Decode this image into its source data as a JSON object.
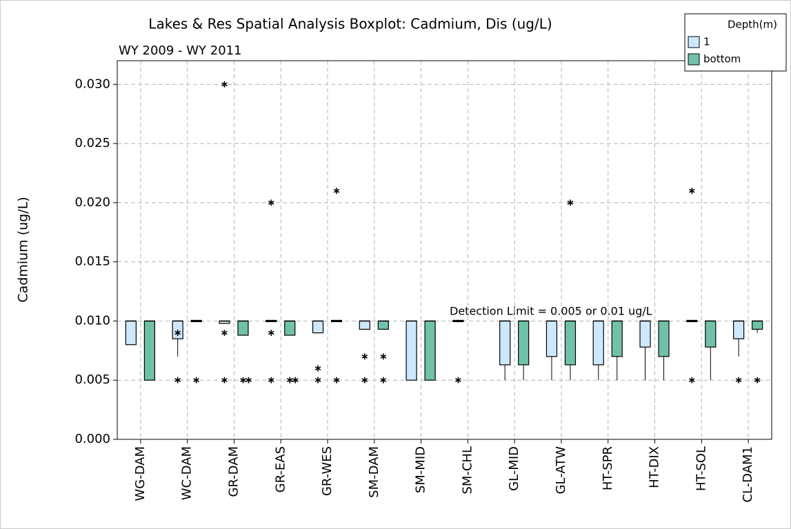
{
  "chart_data": {
    "type": "boxplot",
    "title": "Lakes & Res Spatial Analysis Boxplot: Cadmium, Dis (ug/L)",
    "subtitle": "WY 2009 - WY 2011",
    "y_label": "Cadmium (ug/L)",
    "annotation": "Detection Limit = 0.005 or 0.01 ug/L",
    "legend_title": "Depth(m)",
    "legend_position": "top-right",
    "grid": true,
    "categories": [
      "WG-DAM",
      "WC-DAM",
      "GR-DAM",
      "GR-EAS",
      "GR-WES",
      "SM-DAM",
      "SM-MID",
      "SM-CHL",
      "GL-MID",
      "GL-ATW",
      "HT-SPR",
      "HT-DIX",
      "HT-SOL",
      "CL-DAM1"
    ],
    "ylim": [
      0,
      0.032
    ],
    "yticks": [
      {
        "value": 0,
        "label": "0.000"
      },
      0.005,
      {
        "value": 0.01,
        "label": "0.010"
      },
      0.015,
      {
        "value": 0.02,
        "label": "0.020"
      },
      0.025,
      {
        "value": 0.03,
        "label": "0.030"
      }
    ],
    "series": [
      {
        "name": "1",
        "color": "#cde8fb",
        "boxes": [
          {
            "low": 0.008,
            "q1": 0.008,
            "median": 0.01,
            "q3": 0.01,
            "high": 0.01,
            "outliers": []
          },
          {
            "low": 0.007,
            "q1": 0.0085,
            "median": 0.01,
            "q3": 0.01,
            "high": 0.01,
            "outliers": [
              0.009,
              0.005
            ]
          },
          {
            "low": 0.0098,
            "q1": 0.0098,
            "median": 0.01,
            "q3": 0.01,
            "high": 0.01,
            "outliers": [
              0.03,
              0.009,
              0.005
            ]
          },
          {
            "low": 0.01,
            "q1": 0.01,
            "median": 0.01,
            "q3": 0.01,
            "high": 0.01,
            "outliers": [
              0.02,
              0.009,
              0.005
            ]
          },
          {
            "low": 0.009,
            "q1": 0.009,
            "median": 0.01,
            "q3": 0.01,
            "high": 0.01,
            "outliers": [
              0.006,
              0.005
            ]
          },
          {
            "low": 0.0093,
            "q1": 0.0093,
            "median": 0.01,
            "q3": 0.01,
            "high": 0.01,
            "outliers": [
              0.007,
              0.005
            ]
          },
          {
            "low": 0.005,
            "q1": 0.005,
            "median": 0.01,
            "q3": 0.01,
            "high": 0.01,
            "outliers": []
          },
          {
            "low": 0.01,
            "q1": 0.01,
            "median": 0.01,
            "q3": 0.01,
            "high": 0.01,
            "outliers": [
              0.005
            ]
          },
          {
            "low": 0.005,
            "q1": 0.0063,
            "median": 0.01,
            "q3": 0.01,
            "high": 0.01,
            "outliers": []
          },
          {
            "low": 0.005,
            "q1": 0.007,
            "median": 0.01,
            "q3": 0.01,
            "high": 0.01,
            "outliers": []
          },
          {
            "low": 0.005,
            "q1": 0.0063,
            "median": 0.01,
            "q3": 0.01,
            "high": 0.01,
            "outliers": []
          },
          {
            "low": 0.005,
            "q1": 0.0078,
            "median": 0.01,
            "q3": 0.01,
            "high": 0.01,
            "outliers": []
          },
          {
            "low": 0.01,
            "q1": 0.01,
            "median": 0.01,
            "q3": 0.01,
            "high": 0.01,
            "outliers": [
              0.021,
              0.005
            ]
          },
          {
            "low": 0.007,
            "q1": 0.0085,
            "median": 0.01,
            "q3": 0.01,
            "high": 0.01,
            "outliers": [
              0.005
            ]
          }
        ]
      },
      {
        "name": "bottom",
        "color": "#6fc2a9",
        "boxes": [
          {
            "low": 0.005,
            "q1": 0.005,
            "median": 0.01,
            "q3": 0.01,
            "high": 0.01,
            "outliers": []
          },
          {
            "low": 0.01,
            "q1": 0.01,
            "median": 0.01,
            "q3": 0.01,
            "high": 0.01,
            "outliers": [
              0.005
            ]
          },
          {
            "low": 0.0088,
            "q1": 0.0088,
            "median": 0.01,
            "q3": 0.01,
            "high": 0.01,
            "outliers": [
              0.005,
              0.005
            ]
          },
          {
            "low": 0.0088,
            "q1": 0.0088,
            "median": 0.01,
            "q3": 0.01,
            "high": 0.01,
            "outliers": [
              0.005,
              0.005
            ]
          },
          {
            "low": 0.01,
            "q1": 0.01,
            "median": 0.01,
            "q3": 0.01,
            "high": 0.01,
            "outliers": [
              0.021,
              0.005
            ]
          },
          {
            "low": 0.0093,
            "q1": 0.0093,
            "median": 0.01,
            "q3": 0.01,
            "high": 0.01,
            "outliers": [
              0.007,
              0.005
            ]
          },
          {
            "low": 0.005,
            "q1": 0.005,
            "median": 0.01,
            "q3": 0.01,
            "high": 0.01,
            "outliers": []
          },
          null,
          {
            "low": 0.005,
            "q1": 0.0063,
            "median": 0.01,
            "q3": 0.01,
            "high": 0.01,
            "outliers": []
          },
          {
            "low": 0.005,
            "q1": 0.0063,
            "median": 0.01,
            "q3": 0.01,
            "high": 0.01,
            "outliers": [
              0.02
            ]
          },
          {
            "low": 0.005,
            "q1": 0.007,
            "median": 0.01,
            "q3": 0.01,
            "high": 0.01,
            "outliers": []
          },
          {
            "low": 0.005,
            "q1": 0.007,
            "median": 0.01,
            "q3": 0.01,
            "high": 0.01,
            "outliers": []
          },
          {
            "low": 0.005,
            "q1": 0.0078,
            "median": 0.01,
            "q3": 0.01,
            "high": 0.01,
            "outliers": []
          },
          {
            "low": 0.009,
            "q1": 0.0093,
            "median": 0.01,
            "q3": 0.01,
            "high": 0.01,
            "outliers": [
              0.005
            ]
          }
        ]
      }
    ]
  }
}
